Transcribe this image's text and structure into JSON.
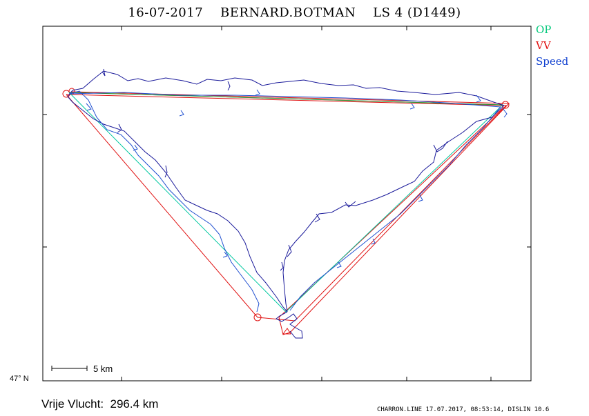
{
  "header": {
    "date": "16-07-2017",
    "pilot": "BERNARD.BOTMAN",
    "glider": "LS 4 (D1449)"
  },
  "legend": {
    "op": {
      "label": "OP",
      "color": "#00c87a"
    },
    "vv": {
      "label": "VV",
      "color": "#e01010"
    },
    "speed": {
      "label": "Speed",
      "color": "#1040d0"
    }
  },
  "axis": {
    "lat_label": "47° N"
  },
  "scale_bar": {
    "label": "5 km"
  },
  "summary": {
    "distance_text": "Vrije Vlucht:  296.4 km"
  },
  "footer": {
    "text": "CHARRON.LINE 17.07.2017, 08:53:14, DISLIN 10.6"
  },
  "colors": {
    "track_dark": "#1a1a9a",
    "track_blue": "#2050d0",
    "frame": "#000000"
  }
}
